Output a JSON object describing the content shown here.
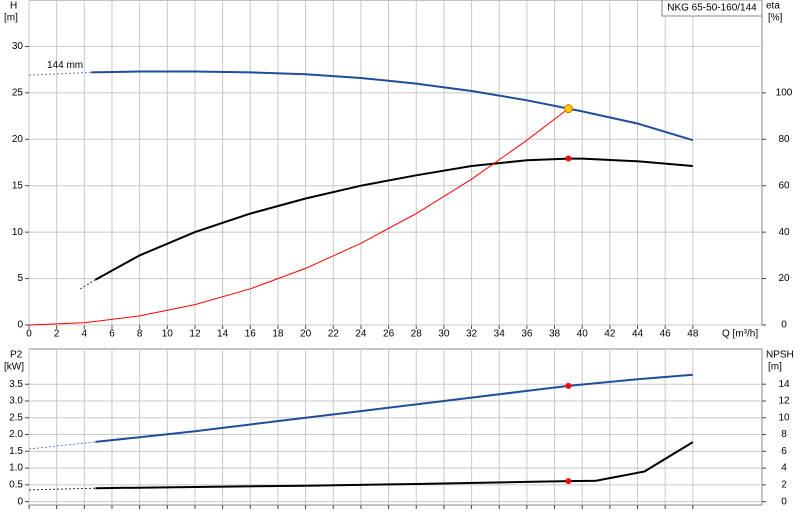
{
  "chart_data": [
    {
      "type": "line",
      "title": "NKG 65-50-160/144",
      "annotation": "144 mm",
      "xlabel": "Q [m³/h]",
      "ylabel": "H",
      "yunit": "[m]",
      "y2label": "eta",
      "y2unit": "[%]",
      "xlim": [
        0,
        53
      ],
      "xticks": [
        0,
        2,
        4,
        6,
        8,
        10,
        12,
        14,
        16,
        18,
        20,
        22,
        24,
        26,
        28,
        30,
        32,
        34,
        36,
        38,
        40,
        42,
        44,
        46,
        48
      ],
      "ylim": [
        0,
        35
      ],
      "yticks": [
        0,
        5,
        10,
        15,
        20,
        25,
        30
      ],
      "y2lim": [
        0,
        140
      ],
      "y2ticks": [
        0,
        20,
        40,
        60,
        80,
        100
      ],
      "grid": true,
      "series": [
        {
          "color": "#5b7fc4",
          "style": "dashed",
          "axis": "y",
          "x": [
            0,
            4.5
          ],
          "values": [
            26.9,
            27.2
          ]
        },
        {
          "color": "#1f4e9a",
          "style": "solid",
          "axis": "y",
          "x": [
            4.5,
            8,
            12,
            16,
            20,
            24,
            28,
            32,
            36,
            39,
            40,
            44,
            48
          ],
          "values": [
            27.2,
            27.3,
            27.3,
            27.2,
            27.0,
            26.6,
            26.0,
            25.2,
            24.2,
            23.3,
            23.0,
            21.7,
            19.9
          ]
        },
        {
          "color": "#333333",
          "style": "dashed",
          "axis": "y2",
          "x": [
            3.7,
            4.8
          ],
          "values": [
            15.5,
            19.5
          ]
        },
        {
          "color": "#000000",
          "style": "solid",
          "axis": "y2",
          "x": [
            4.8,
            8,
            12,
            16,
            20,
            24,
            28,
            32,
            36,
            39,
            40,
            44,
            48
          ],
          "values": [
            19.5,
            30,
            40,
            48,
            54.5,
            60,
            64.5,
            68.5,
            71,
            71.7,
            71.7,
            70.5,
            68.5
          ]
        },
        {
          "color": "#ff0000",
          "style": "thin",
          "axis": "y",
          "x": [
            0,
            4,
            8,
            12,
            16,
            20,
            24,
            28,
            32,
            36,
            39
          ],
          "values": [
            0,
            0.25,
            0.98,
            2.2,
            3.9,
            6.1,
            8.8,
            12.0,
            15.7,
            19.9,
            23.3
          ]
        }
      ],
      "points": [
        {
          "x": 39,
          "y": 23.3,
          "axis": "y",
          "color": "#ffcc00"
        },
        {
          "x": 39,
          "y": 71.7,
          "axis": "y2",
          "color": "#ff0000"
        }
      ]
    },
    {
      "type": "line",
      "ylabel": "P2",
      "yunit": "[kW]",
      "y2label": "NPSH",
      "y2unit": "[m]",
      "xlim": [
        0,
        53
      ],
      "xticks": [
        0,
        2,
        4,
        6,
        8,
        10,
        12,
        14,
        16,
        18,
        20,
        22,
        24,
        26,
        28,
        30,
        32,
        34,
        36,
        38,
        40,
        42,
        44,
        46,
        48
      ],
      "ylim": [
        -0.1,
        4.55
      ],
      "yticks": [
        0,
        0.5,
        {
          "value": 1,
          "label": "1.0"
        },
        1.5,
        {
          "value": 2,
          "label": "2.0"
        },
        2.5,
        {
          "value": 3,
          "label": "3.0"
        },
        3.5
      ],
      "y2lim": [
        -0.4,
        18.2
      ],
      "y2ticks": [
        0,
        2,
        4,
        6,
        8,
        10,
        12,
        14
      ],
      "grid": true,
      "series": [
        {
          "color": "#5b7fc4",
          "style": "dashed",
          "axis": "y",
          "x": [
            0,
            4.8
          ],
          "values": [
            1.57,
            1.78
          ]
        },
        {
          "color": "#1f4e9a",
          "style": "solid",
          "axis": "y",
          "x": [
            4.8,
            8,
            12,
            16,
            20,
            24,
            28,
            32,
            36,
            39,
            44,
            48
          ],
          "values": [
            1.78,
            1.92,
            2.1,
            2.3,
            2.5,
            2.7,
            2.9,
            3.1,
            3.3,
            3.45,
            3.65,
            3.78
          ]
        },
        {
          "color": "#333333",
          "style": "dashed",
          "axis": "y2",
          "x": [
            0,
            4.8
          ],
          "values": [
            1.4,
            1.6
          ]
        },
        {
          "color": "#000000",
          "style": "solid",
          "axis": "y2",
          "x": [
            4.8,
            12,
            20,
            28,
            36,
            39,
            41,
            44.5,
            48
          ],
          "values": [
            1.6,
            1.75,
            1.9,
            2.1,
            2.35,
            2.45,
            2.5,
            3.6,
            7.1
          ]
        }
      ],
      "points": [
        {
          "x": 39,
          "y": 3.45,
          "axis": "y",
          "color": "#ff0000"
        },
        {
          "x": 39,
          "y": 2.45,
          "axis": "y2",
          "color": "#ff0000"
        }
      ]
    }
  ]
}
